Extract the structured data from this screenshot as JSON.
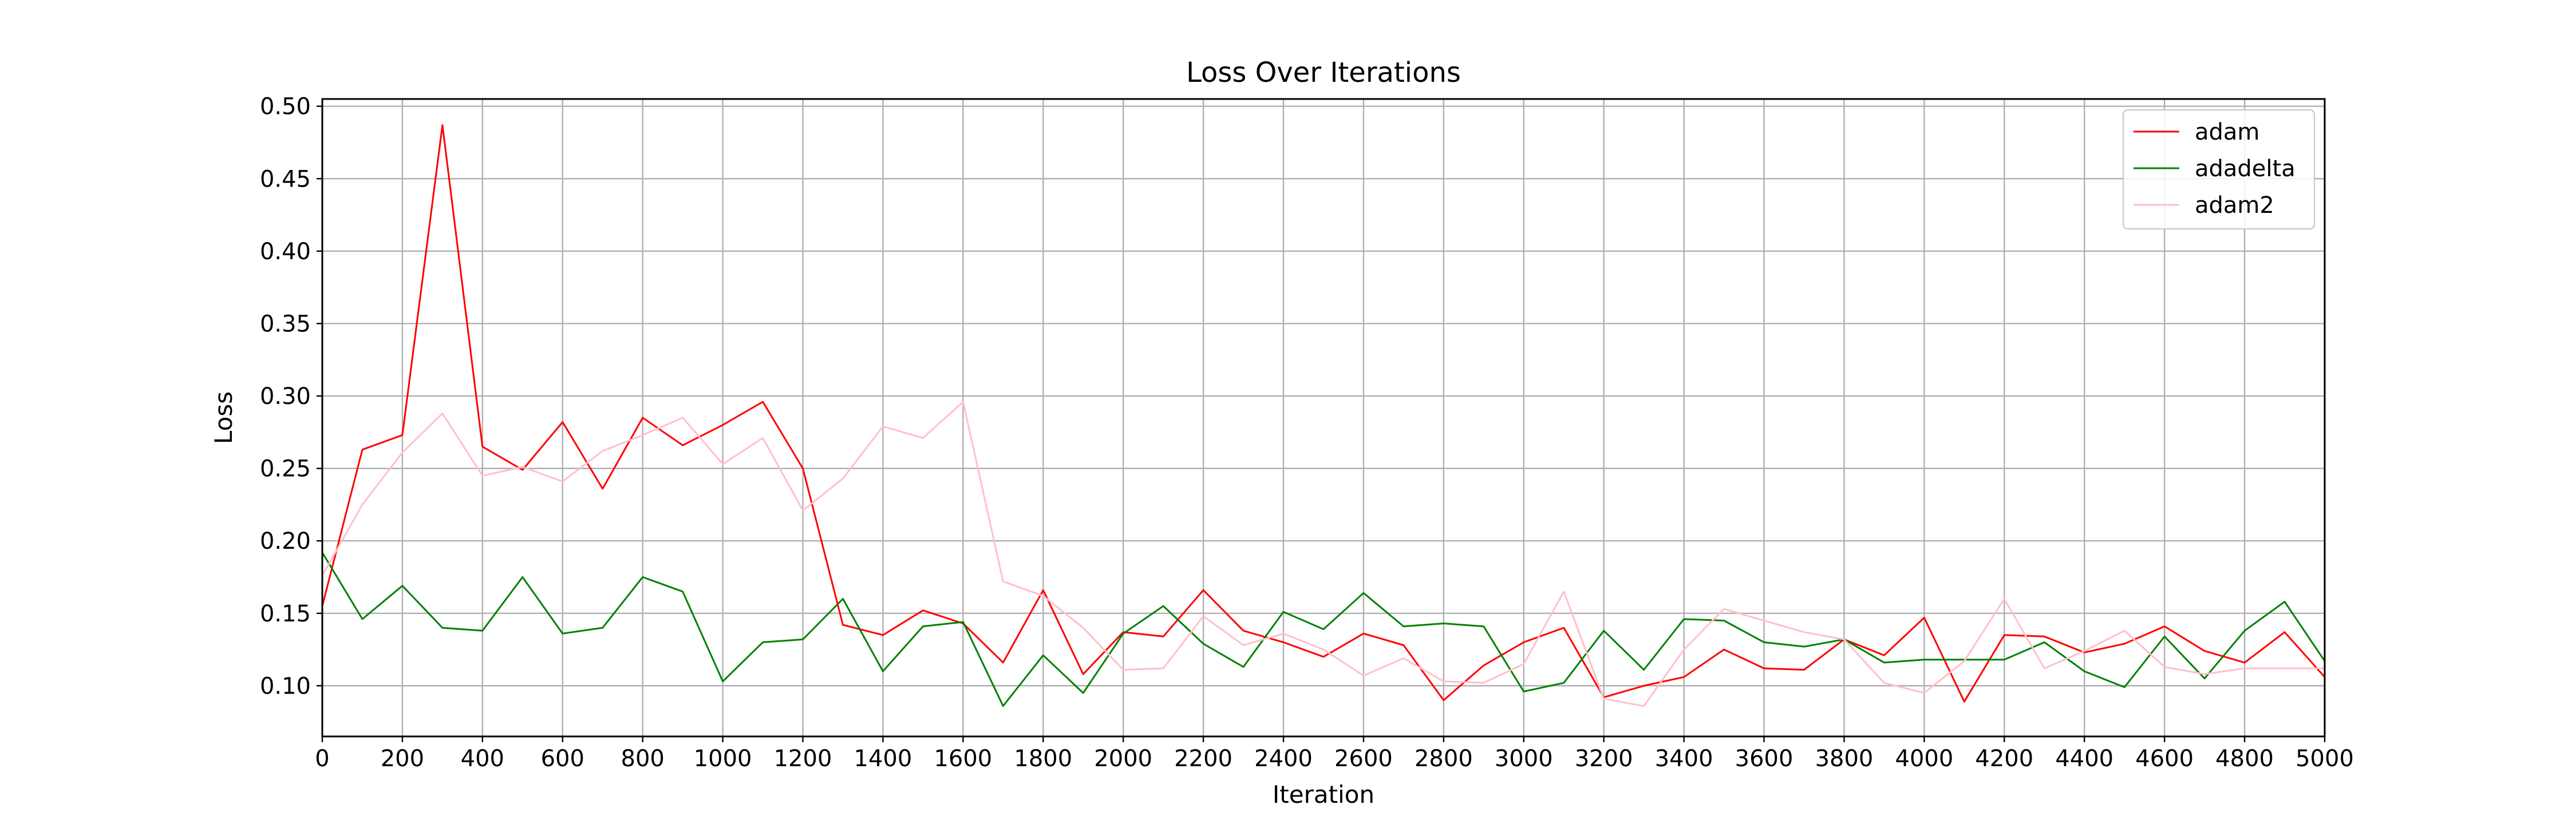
{
  "chart_data": {
    "type": "line",
    "title": "Loss Over Iterations",
    "xlabel": "Iteration",
    "ylabel": "Loss",
    "xlim": [
      0,
      5000
    ],
    "ylim": [
      0.065,
      0.505
    ],
    "xticks": [
      0,
      200,
      400,
      600,
      800,
      1000,
      1200,
      1400,
      1600,
      1800,
      2000,
      2200,
      2400,
      2600,
      2800,
      3000,
      3200,
      3400,
      3600,
      3800,
      4000,
      4200,
      4400,
      4600,
      4800,
      5000
    ],
    "xtick_labels": [
      "0",
      "200",
      "400",
      "600",
      "800",
      "1000",
      "1200",
      "1400",
      "1600",
      "1800",
      "2000",
      "2200",
      "2400",
      "2600",
      "2800",
      "3000",
      "3200",
      "3400",
      "3600",
      "3800",
      "4000",
      "4200",
      "4400",
      "4600",
      "4800",
      "5000"
    ],
    "yticks": [
      0.1,
      0.15,
      0.2,
      0.25,
      0.3,
      0.35,
      0.4,
      0.45,
      0.5
    ],
    "ytick_labels": [
      "0.10",
      "0.15",
      "0.20",
      "0.25",
      "0.30",
      "0.35",
      "0.40",
      "0.45",
      "0.50"
    ],
    "grid": true,
    "legend_position": "top-right",
    "x": [
      0,
      100,
      200,
      300,
      400,
      500,
      600,
      700,
      800,
      900,
      1000,
      1100,
      1200,
      1300,
      1400,
      1500,
      1600,
      1700,
      1800,
      1900,
      2000,
      2100,
      2200,
      2300,
      2400,
      2500,
      2600,
      2700,
      2800,
      2900,
      3000,
      3100,
      3200,
      3300,
      3400,
      3500,
      3600,
      3700,
      3800,
      3900,
      4000,
      4100,
      4200,
      4300,
      4400,
      4500,
      4600,
      4700,
      4800,
      4900,
      5000
    ],
    "series": [
      {
        "name": "adam",
        "color": "#ff0000",
        "values": [
          0.155,
          0.263,
          0.273,
          0.487,
          0.265,
          0.249,
          0.282,
          0.236,
          0.285,
          0.266,
          0.28,
          0.296,
          0.25,
          0.142,
          0.135,
          0.152,
          0.143,
          0.116,
          0.166,
          0.108,
          0.137,
          0.134,
          0.166,
          0.138,
          0.13,
          0.12,
          0.136,
          0.128,
          0.09,
          0.114,
          0.13,
          0.14,
          0.092,
          0.1,
          0.106,
          0.125,
          0.112,
          0.111,
          0.132,
          0.121,
          0.147,
          0.089,
          0.135,
          0.134,
          0.123,
          0.129,
          0.141,
          0.124,
          0.116,
          0.137,
          0.106
        ]
      },
      {
        "name": "adadelta",
        "color": "#008000",
        "values": [
          0.192,
          0.146,
          0.169,
          0.14,
          0.138,
          0.175,
          0.136,
          0.14,
          0.175,
          0.165,
          0.103,
          0.13,
          0.132,
          0.16,
          0.11,
          0.141,
          0.144,
          0.086,
          0.121,
          0.095,
          0.136,
          0.155,
          0.129,
          0.113,
          0.151,
          0.139,
          0.164,
          0.141,
          0.143,
          0.141,
          0.096,
          0.102,
          0.138,
          0.111,
          0.146,
          0.145,
          0.13,
          0.127,
          0.132,
          0.116,
          0.118,
          0.118,
          0.118,
          0.13,
          0.11,
          0.099,
          0.134,
          0.105,
          0.138,
          0.158,
          0.117
        ]
      },
      {
        "name": "adam2",
        "color": "#ffc0cb",
        "values": [
          0.176,
          0.225,
          0.261,
          0.288,
          0.245,
          0.251,
          0.241,
          0.262,
          0.273,
          0.285,
          0.253,
          0.271,
          0.221,
          0.243,
          0.279,
          0.271,
          0.296,
          0.172,
          0.162,
          0.14,
          0.111,
          0.112,
          0.148,
          0.128,
          0.136,
          0.125,
          0.107,
          0.119,
          0.103,
          0.102,
          0.115,
          0.165,
          0.091,
          0.086,
          0.125,
          0.153,
          0.145,
          0.137,
          0.132,
          0.102,
          0.095,
          0.117,
          0.16,
          0.112,
          0.124,
          0.138,
          0.113,
          0.108,
          0.112,
          0.112,
          0.112
        ]
      }
    ]
  }
}
